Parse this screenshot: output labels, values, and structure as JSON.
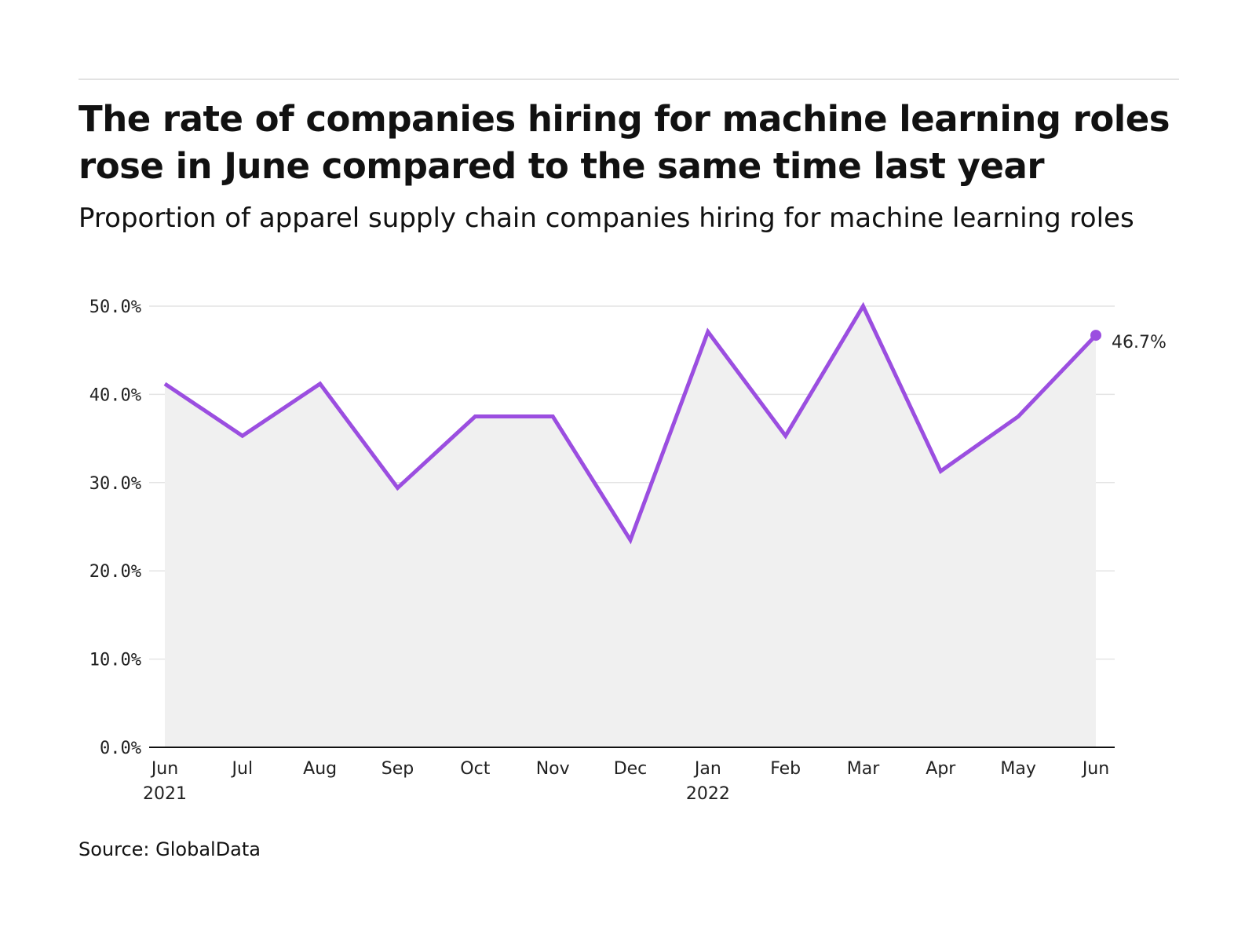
{
  "title": "The rate of companies hiring for machine learning roles rose in June compared to the same time last year",
  "subtitle": "Proportion of apparel supply chain companies hiring for machine learning roles",
  "source": "Source: GlobalData",
  "colors": {
    "line": "#9b4ee0",
    "area": "#f0f0f0",
    "grid": "#e4e4e4",
    "axis": "#111111"
  },
  "chart_data": {
    "type": "area",
    "categories": [
      "Jun",
      "Jul",
      "Aug",
      "Sep",
      "Oct",
      "Nov",
      "Dec",
      "Jan",
      "Feb",
      "Mar",
      "Apr",
      "May",
      "Jun"
    ],
    "category_years": [
      "2021",
      "",
      "",
      "",
      "",
      "",
      "",
      "2022",
      "",
      "",
      "",
      "",
      ""
    ],
    "values": [
      41.2,
      35.3,
      41.2,
      29.4,
      37.5,
      37.5,
      23.5,
      47.1,
      35.3,
      50.0,
      31.3,
      37.5,
      46.7
    ],
    "end_label": "46.7%",
    "y_ticks": [
      "0.0%",
      "10.0%",
      "20.0%",
      "30.0%",
      "40.0%",
      "50.0%"
    ],
    "ylim": [
      0,
      50
    ],
    "grid": true,
    "legend": "none"
  }
}
